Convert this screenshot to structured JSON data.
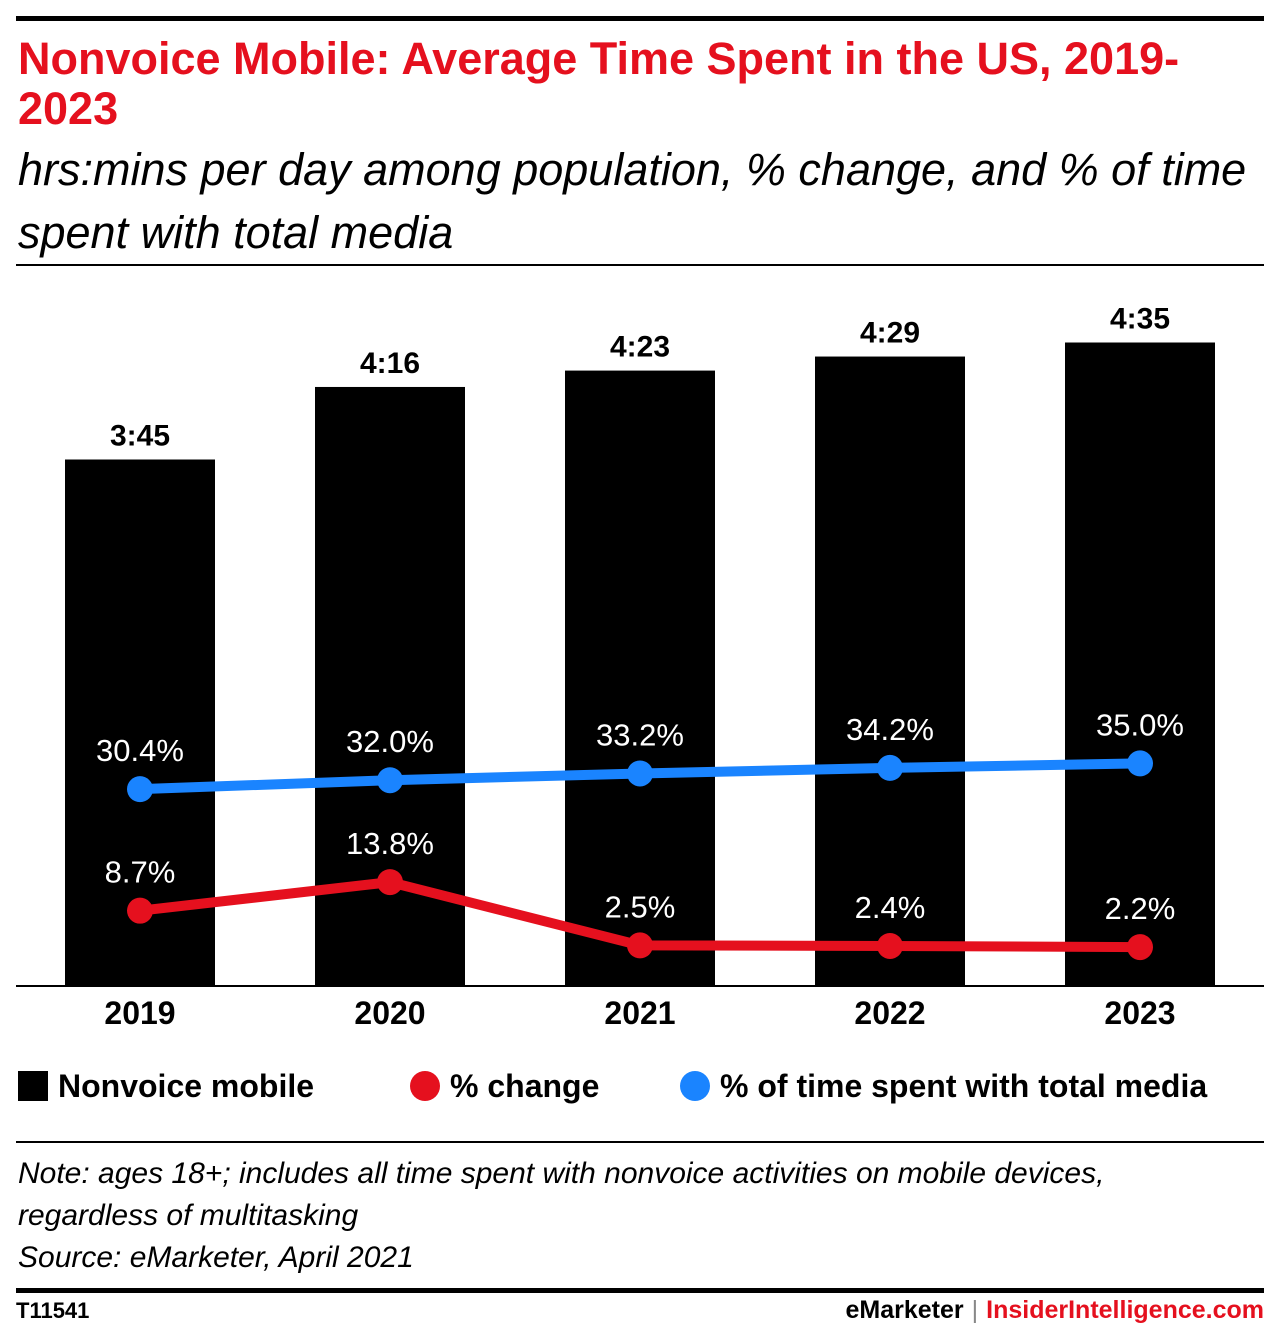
{
  "title": "Nonvoice Mobile: Average Time Spent in the US, 2019-2023",
  "subtitle": "hrs:mins per day among population, % change, and % of time spent with total media",
  "chart_data": {
    "type": "bar",
    "categories": [
      "2019",
      "2020",
      "2021",
      "2022",
      "2023"
    ],
    "bars": {
      "name": "Nonvoice mobile",
      "labels": [
        "3:45",
        "4:16",
        "4:23",
        "4:29",
        "4:35"
      ],
      "values_minutes": [
        225,
        256,
        263,
        269,
        275
      ],
      "color": "#000000"
    },
    "series": [
      {
        "name": "% change",
        "type": "line",
        "values": [
          8.7,
          13.8,
          2.5,
          2.4,
          2.2
        ],
        "labels": [
          "8.7%",
          "13.8%",
          "2.5%",
          "2.4%",
          "2.2%"
        ],
        "color": "#e5101e"
      },
      {
        "name": "% of time spent with total media",
        "type": "line",
        "values": [
          30.4,
          32.0,
          33.2,
          34.2,
          35.0
        ],
        "labels": [
          "30.4%",
          "32.0%",
          "33.2%",
          "34.2%",
          "35.0%"
        ],
        "color": "#1a84ff"
      }
    ],
    "grid": false,
    "legend_position": "bottom"
  },
  "legend": {
    "bars": "Nonvoice mobile",
    "change": "% change",
    "share": "% of time spent with total media"
  },
  "note": {
    "line1": "Note: ages 18+; includes all time spent with nonvoice activities on mobile devices,",
    "line2": "regardless of multitasking",
    "source": "Source: eMarketer, April 2021"
  },
  "footer": {
    "chart_id": "T11541",
    "brand1": "eMarketer",
    "separator": "|",
    "brand2": "InsiderIntelligence.com"
  }
}
